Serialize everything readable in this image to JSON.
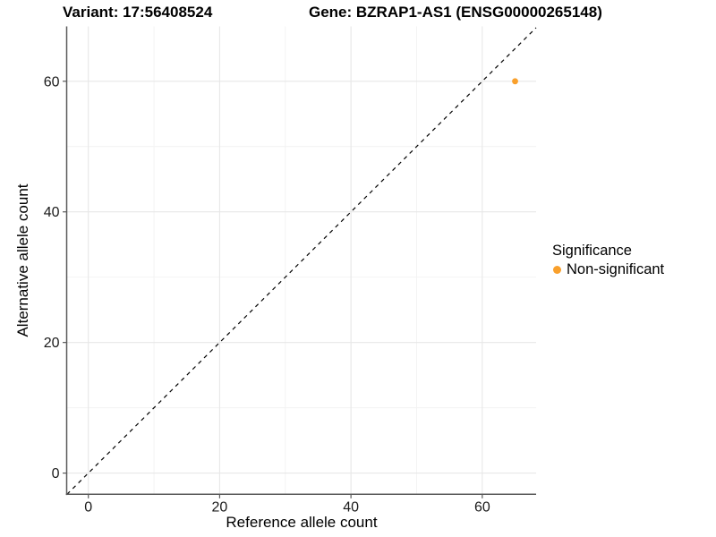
{
  "titles": {
    "left": "Variant: 17:56408524",
    "right": "Gene: BZRAP1-AS1 (ENSG00000265148)"
  },
  "axes": {
    "x": {
      "label": "Reference allele count"
    },
    "y": {
      "label": "Alternative allele count"
    }
  },
  "legend": {
    "title": "Significance",
    "items": [
      {
        "label": "Non-significant",
        "color": "#F9A02C"
      }
    ]
  },
  "colors": {
    "point": "#F9A02C",
    "axis_line": "#5a5a5a",
    "tick_mark": "#5a5a5a",
    "tick_text": "#1a1a1a",
    "grid_major": "#e7e7e7",
    "grid_minor": "#f2f2f2",
    "reference_line": "#000000",
    "background": "#ffffff"
  },
  "chart_data": {
    "type": "scatter",
    "title": "Variant: 17:56408524   Gene: BZRAP1-AS1 (ENSG00000265148)",
    "xlabel": "Reference allele count",
    "ylabel": "Alternative allele count",
    "xlim": [
      -3.3,
      68.2
    ],
    "ylim": [
      -3.25,
      68.4
    ],
    "x_ticks": [
      0,
      20,
      40,
      60
    ],
    "y_ticks": [
      0,
      20,
      40,
      60
    ],
    "x_minor_ticks": [
      10,
      30,
      50
    ],
    "y_minor_ticks": [
      10,
      30,
      50
    ],
    "grid": true,
    "legend_position": "right",
    "series": [
      {
        "name": "Non-significant",
        "color": "#F9A02C",
        "points": [
          {
            "x": 65,
            "y": 60
          }
        ]
      }
    ],
    "reference_line": {
      "kind": "abline",
      "slope": 1,
      "intercept": 0,
      "linetype": "dashed"
    }
  }
}
